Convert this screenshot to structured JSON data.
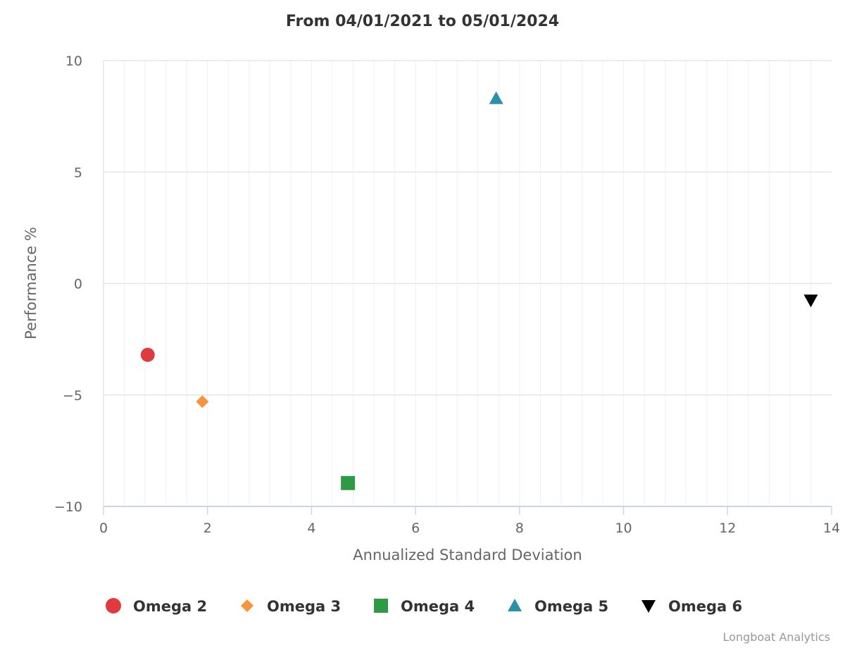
{
  "chart_data": {
    "type": "scatter",
    "title": "From 04/01/2021 to 05/01/2024",
    "xlabel": "Annualized Standard Deviation",
    "ylabel": "Performance %",
    "xlim": [
      0,
      14
    ],
    "ylim": [
      -10,
      10
    ],
    "x_ticks": [
      0,
      2,
      4,
      6,
      8,
      10,
      12,
      14
    ],
    "y_ticks": [
      10,
      5,
      0,
      -5,
      -10
    ],
    "x_tick_labels": [
      "0",
      "2",
      "4",
      "6",
      "8",
      "10",
      "12",
      "14"
    ],
    "y_tick_labels": [
      "10",
      "5",
      "0",
      "−5",
      "−10"
    ],
    "grid": true,
    "legend_position": "bottom",
    "series": [
      {
        "name": "Omega 2",
        "x": 0.85,
        "y": -3.2,
        "marker": "circle",
        "color": "#e03a3e"
      },
      {
        "name": "Omega 3",
        "x": 1.9,
        "y": -5.3,
        "marker": "diamond",
        "color": "#f7943c"
      },
      {
        "name": "Omega 4",
        "x": 4.7,
        "y": -8.95,
        "marker": "square",
        "color": "#2e9a45"
      },
      {
        "name": "Omega 5",
        "x": 7.55,
        "y": 8.3,
        "marker": "triangle",
        "color": "#2b91a8"
      },
      {
        "name": "Omega 6",
        "x": 13.6,
        "y": -0.75,
        "marker": "triangle-down",
        "color": "#000000"
      }
    ]
  },
  "credits": "Longboat Analytics"
}
